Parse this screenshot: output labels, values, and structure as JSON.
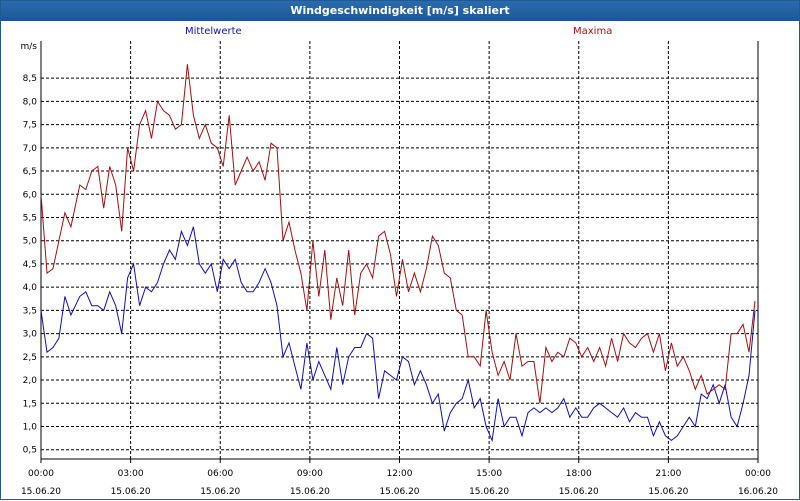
{
  "window": {
    "title": "Windgeschwindigkeit [m/s] skaliert"
  },
  "colors": {
    "mean": "#1010b0",
    "max": "#a01010",
    "title_bar": "#1f5f9f"
  },
  "chart_data": {
    "type": "line",
    "title": "Windgeschwindigkeit [m/s] skaliert",
    "ylabel": "m/s",
    "ylim": [
      0.3,
      9.3
    ],
    "y_ticks": [
      "0,5",
      "1,0",
      "1,5",
      "2,0",
      "2,5",
      "3,0",
      "3,5",
      "4,0",
      "4,5",
      "5,0",
      "5,5",
      "6,0",
      "6,5",
      "7,0",
      "7,5",
      "8,0",
      "8,5"
    ],
    "x_ticks": [
      {
        "time": "00:00",
        "date": "15.06.20"
      },
      {
        "time": "03:00",
        "date": "15.06.20"
      },
      {
        "time": "06:00",
        "date": "15.06.20"
      },
      {
        "time": "09:00",
        "date": "15.06.20"
      },
      {
        "time": "12:00",
        "date": "15.06.20"
      },
      {
        "time": "15:00",
        "date": "15.06.20"
      },
      {
        "time": "18:00",
        "date": "15.06.20"
      },
      {
        "time": "21:00",
        "date": "15.06.20"
      },
      {
        "time": "00:00",
        "date": "16.06.20"
      }
    ],
    "grid": true,
    "x_hours": [
      0,
      0.2,
      0.4,
      0.6,
      0.8,
      1.0,
      1.3,
      1.5,
      1.7,
      1.9,
      2.1,
      2.3,
      2.5,
      2.7,
      2.9,
      3.1,
      3.3,
      3.5,
      3.7,
      3.9,
      4.1,
      4.3,
      4.5,
      4.7,
      4.9,
      5.1,
      5.3,
      5.5,
      5.7,
      5.9,
      6.1,
      6.3,
      6.5,
      6.7,
      6.9,
      7.1,
      7.3,
      7.5,
      7.7,
      7.9,
      8.1,
      8.3,
      8.5,
      8.7,
      8.9,
      9.1,
      9.3,
      9.5,
      9.7,
      9.9,
      10.1,
      10.3,
      10.5,
      10.7,
      10.9,
      11.1,
      11.3,
      11.5,
      11.7,
      11.9,
      12.1,
      12.3,
      12.5,
      12.7,
      12.9,
      13.1,
      13.3,
      13.5,
      13.7,
      13.9,
      14.1,
      14.3,
      14.5,
      14.7,
      14.9,
      15.1,
      15.3,
      15.5,
      15.7,
      15.9,
      16.1,
      16.3,
      16.5,
      16.7,
      16.9,
      17.1,
      17.3,
      17.5,
      17.7,
      17.9,
      18.1,
      18.3,
      18.5,
      18.7,
      18.9,
      19.1,
      19.3,
      19.5,
      19.7,
      19.9,
      20.1,
      20.3,
      20.5,
      20.7,
      20.9,
      21.1,
      21.3,
      21.5,
      21.7,
      21.9,
      22.1,
      22.3,
      22.5,
      22.7,
      22.9,
      23.1,
      23.3,
      23.5,
      23.7,
      23.9
    ],
    "series": [
      {
        "name": "Mittelwerte",
        "values": [
          3.5,
          2.6,
          2.7,
          2.9,
          3.8,
          3.4,
          3.8,
          3.9,
          3.6,
          3.6,
          3.5,
          3.9,
          3.6,
          3.0,
          4.2,
          4.5,
          3.6,
          4.0,
          3.9,
          4.1,
          4.5,
          4.8,
          4.6,
          5.2,
          4.9,
          5.3,
          4.5,
          4.3,
          4.5,
          3.9,
          4.6,
          4.4,
          4.6,
          4.1,
          3.9,
          3.9,
          4.1,
          4.4,
          4.1,
          3.6,
          2.5,
          2.8,
          2.3,
          1.8,
          2.8,
          2.0,
          2.4,
          2.1,
          1.8,
          2.7,
          1.9,
          2.5,
          2.7,
          2.7,
          3.0,
          2.9,
          1.6,
          2.2,
          2.1,
          2.0,
          2.5,
          2.4,
          1.9,
          2.2,
          1.9,
          1.5,
          1.7,
          0.9,
          1.3,
          1.5,
          1.6,
          2.0,
          1.4,
          1.6,
          1.0,
          0.7,
          1.6,
          1.0,
          1.2,
          1.2,
          0.8,
          1.3,
          1.4,
          1.3,
          1.4,
          1.3,
          1.4,
          1.6,
          1.2,
          1.4,
          1.2,
          1.2,
          1.4,
          1.5,
          1.4,
          1.3,
          1.2,
          1.4,
          1.1,
          1.3,
          1.2,
          1.2,
          0.8,
          1.1,
          0.8,
          0.7,
          0.8,
          1.0,
          1.2,
          1.0,
          1.7,
          1.6,
          1.9,
          1.5,
          1.9,
          1.2,
          1.0,
          1.5,
          2.1,
          3.5
        ]
      },
      {
        "name": "Maxima",
        "values": [
          6.0,
          4.3,
          4.4,
          5.0,
          5.6,
          5.3,
          6.2,
          6.1,
          6.5,
          6.6,
          5.7,
          6.6,
          6.2,
          5.2,
          7.0,
          6.5,
          7.5,
          7.8,
          7.2,
          8.0,
          7.8,
          7.7,
          7.4,
          7.5,
          8.8,
          7.7,
          7.2,
          7.5,
          7.1,
          7.0,
          6.6,
          7.7,
          6.2,
          6.5,
          6.8,
          6.5,
          6.7,
          6.3,
          7.1,
          7.0,
          5.0,
          5.4,
          4.8,
          4.3,
          3.5,
          5.0,
          3.8,
          4.8,
          3.3,
          4.2,
          3.6,
          4.8,
          3.4,
          4.3,
          4.5,
          4.2,
          5.1,
          5.2,
          4.7,
          3.8,
          4.6,
          3.9,
          4.3,
          3.9,
          4.4,
          5.1,
          4.9,
          4.3,
          4.2,
          3.5,
          3.4,
          2.5,
          2.5,
          2.3,
          3.5,
          2.6,
          2.1,
          2.4,
          2.0,
          3.0,
          2.3,
          2.4,
          2.4,
          1.5,
          2.7,
          2.4,
          2.6,
          2.5,
          2.9,
          2.8,
          2.5,
          2.7,
          2.4,
          2.7,
          2.3,
          2.9,
          2.4,
          3.0,
          2.8,
          2.7,
          2.9,
          3.0,
          2.6,
          3.0,
          2.2,
          2.8,
          2.3,
          2.5,
          2.2,
          1.8,
          2.1,
          1.7,
          1.8,
          1.9,
          1.8,
          3.0,
          3.0,
          3.2,
          2.6,
          3.7
        ]
      }
    ]
  }
}
